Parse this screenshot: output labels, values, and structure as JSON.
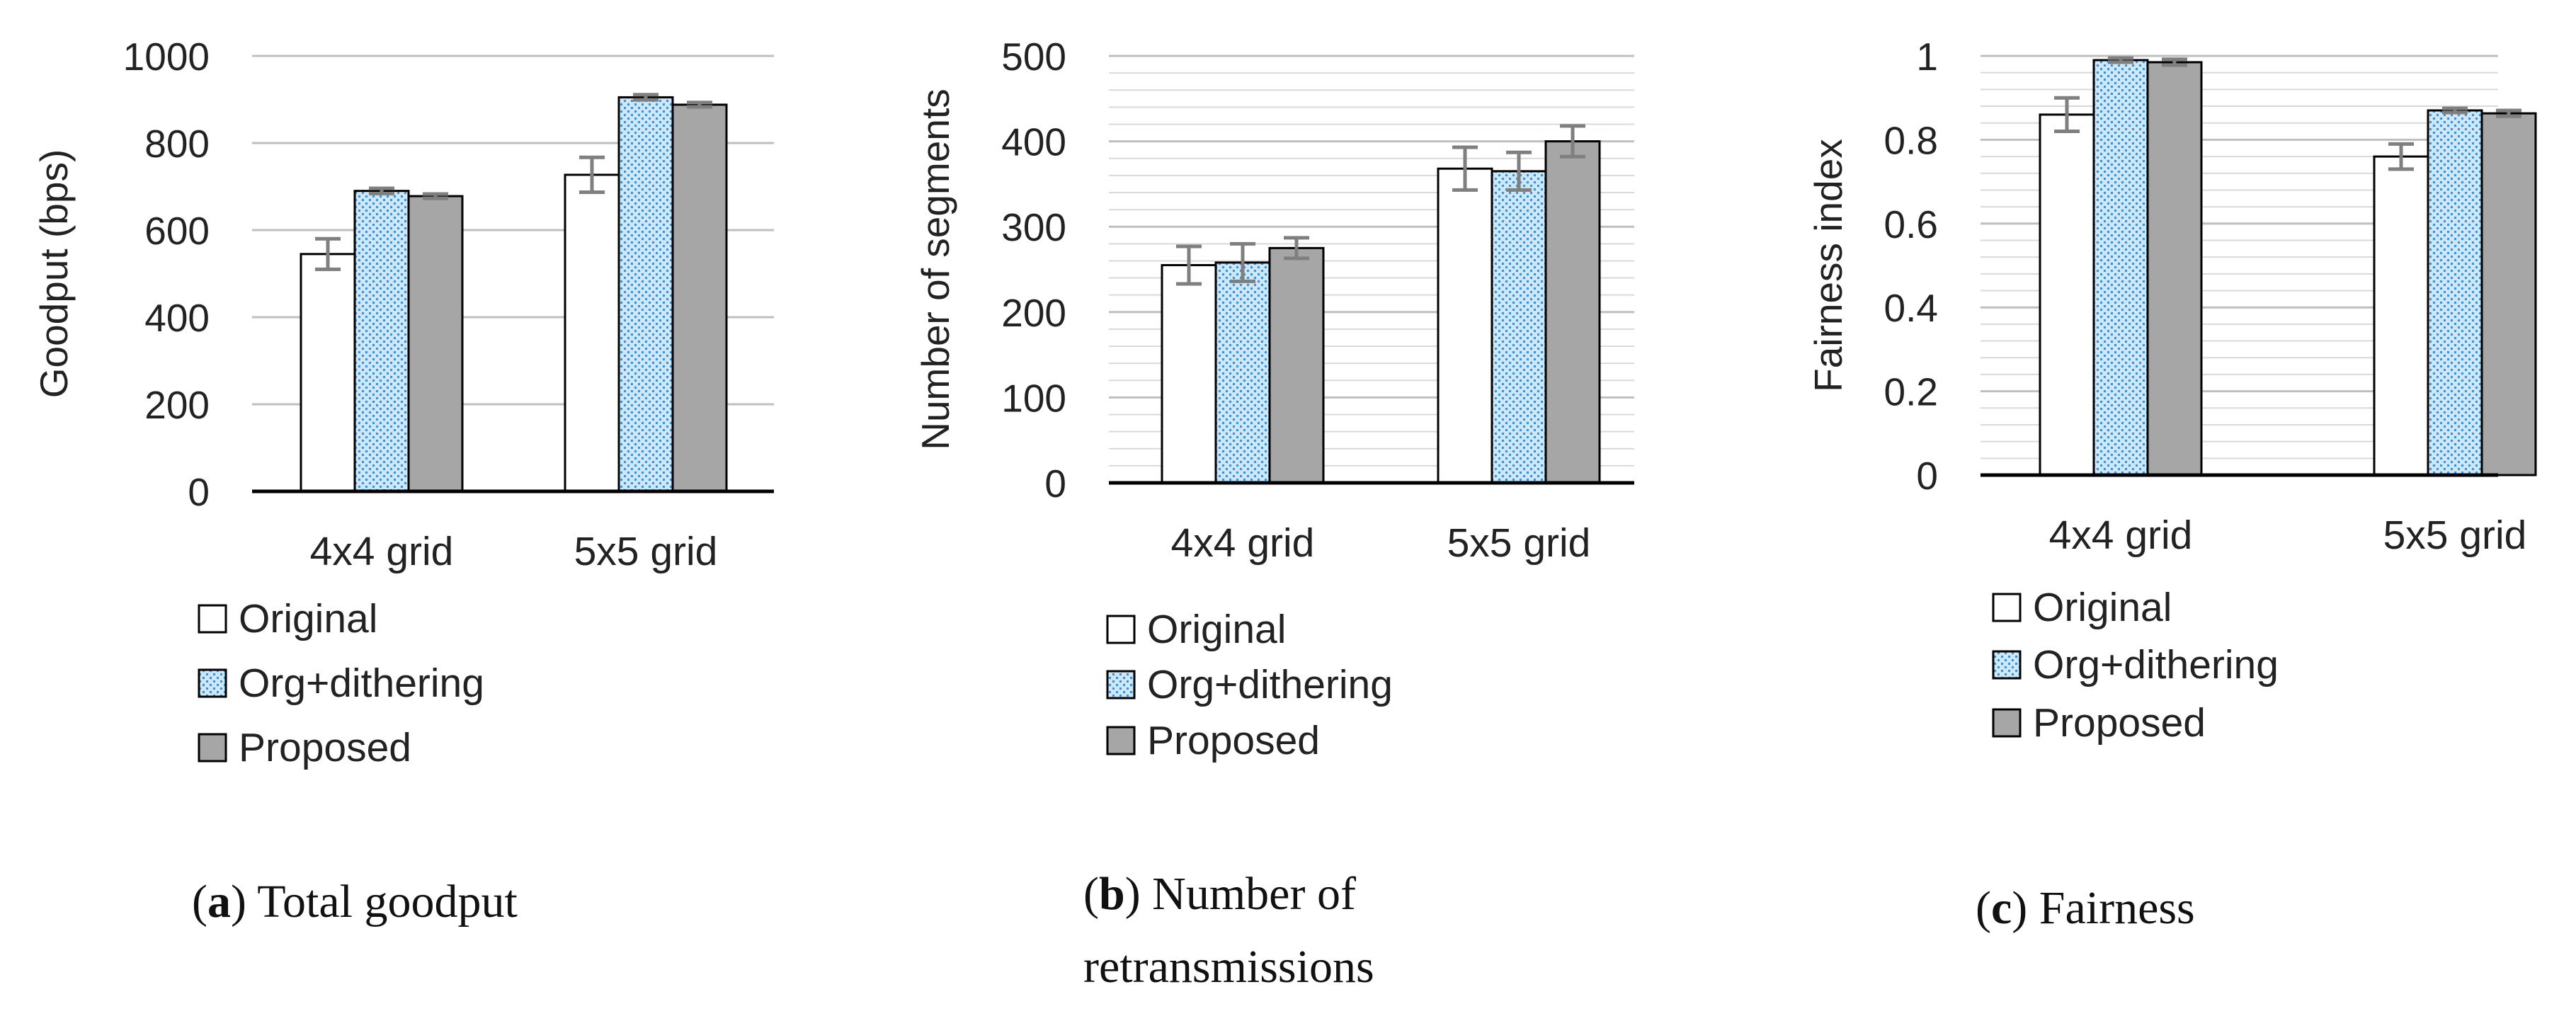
{
  "legend": [
    "Original",
    "Org+dithering",
    "Proposed"
  ],
  "colors": {
    "original": "#ffffff",
    "dither_fill": "#cfe8f7",
    "dither_dot": "#3a8fd6",
    "proposed": "#a6a6a6",
    "errorbar": "#7f7f7f",
    "axis": "#000000",
    "grid": "#d9d9d9"
  },
  "chart_data": [
    {
      "id": "a",
      "type": "bar",
      "categories": [
        "4x4 grid",
        "5x5 grid"
      ],
      "series": [
        {
          "name": "Original",
          "values": [
            545,
            727
          ],
          "errors": [
            35,
            40
          ]
        },
        {
          "name": "Org+dithering",
          "values": [
            690,
            905
          ],
          "errors": [
            6,
            6
          ]
        },
        {
          "name": "Proposed",
          "values": [
            678,
            888
          ],
          "errors": [
            5,
            5
          ]
        }
      ],
      "ylabel": "Goodput (bps)",
      "ylim": [
        0,
        1000
      ],
      "yticks": [
        "0",
        "200",
        "400",
        "600",
        "800",
        "1000"
      ],
      "grid": "major",
      "caption_letter": "a",
      "caption_lines": [
        ") Total goodput"
      ]
    },
    {
      "id": "b",
      "type": "bar",
      "categories": [
        "4x4 grid",
        "5x5 grid"
      ],
      "series": [
        {
          "name": "Original",
          "values": [
            255,
            368
          ],
          "errors": [
            22,
            25
          ]
        },
        {
          "name": "Org+dithering",
          "values": [
            258,
            365
          ],
          "errors": [
            22,
            22
          ]
        },
        {
          "name": "Proposed",
          "values": [
            275,
            400
          ],
          "errors": [
            12,
            18
          ]
        }
      ],
      "ylabel": "Number of segments",
      "ylim": [
        0,
        500
      ],
      "yticks": [
        "0",
        "100",
        "200",
        "300",
        "400",
        "500"
      ],
      "grid": "minor",
      "caption_letter": "b",
      "caption_lines": [
        ") Number of",
        "retransmissions"
      ]
    },
    {
      "id": "c",
      "type": "bar",
      "categories": [
        "4x4 grid",
        "5x5 grid"
      ],
      "series": [
        {
          "name": "Original",
          "values": [
            0.86,
            0.76
          ],
          "errors": [
            0.04,
            0.03
          ]
        },
        {
          "name": "Org+dithering",
          "values": [
            0.99,
            0.87
          ],
          "errors": [
            0.005,
            0.005
          ]
        },
        {
          "name": "Proposed",
          "values": [
            0.985,
            0.863
          ],
          "errors": [
            0.007,
            0.007
          ]
        }
      ],
      "ylabel": "Fairness index",
      "ylim": [
        0,
        1
      ],
      "yticks": [
        "0",
        "0.2",
        "0.4",
        "0.6",
        "0.8",
        "1"
      ],
      "grid": "minor",
      "caption_letter": "c",
      "caption_lines": [
        ") Fairness"
      ]
    }
  ]
}
